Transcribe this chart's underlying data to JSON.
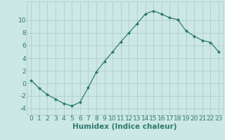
{
  "x": [
    0,
    1,
    2,
    3,
    4,
    5,
    6,
    7,
    8,
    9,
    10,
    11,
    12,
    13,
    14,
    15,
    16,
    17,
    18,
    19,
    20,
    21,
    22,
    23
  ],
  "y": [
    0.5,
    -0.8,
    -1.8,
    -2.5,
    -3.2,
    -3.6,
    -3.0,
    -0.7,
    1.8,
    3.5,
    5.0,
    6.6,
    8.0,
    9.5,
    11.0,
    11.5,
    11.0,
    10.4,
    10.1,
    8.3,
    7.5,
    6.8,
    6.5,
    5.0
  ],
  "line_color": "#2d7a6e",
  "marker": "D",
  "marker_size": 2.0,
  "bg_color": "#cce8e4",
  "grid_color": "#aac8c4",
  "xlabel": "Humidex (Indice chaleur)",
  "xlim": [
    -0.5,
    23.5
  ],
  "ylim": [
    -5,
    13
  ],
  "yticks": [
    -4,
    -2,
    0,
    2,
    4,
    6,
    8,
    10
  ],
  "xticks": [
    0,
    1,
    2,
    3,
    4,
    5,
    6,
    7,
    8,
    9,
    10,
    11,
    12,
    13,
    14,
    15,
    16,
    17,
    18,
    19,
    20,
    21,
    22,
    23
  ],
  "tick_color": "#2d7a6e",
  "xlabel_fontsize": 7.5,
  "tick_fontsize": 6.5
}
